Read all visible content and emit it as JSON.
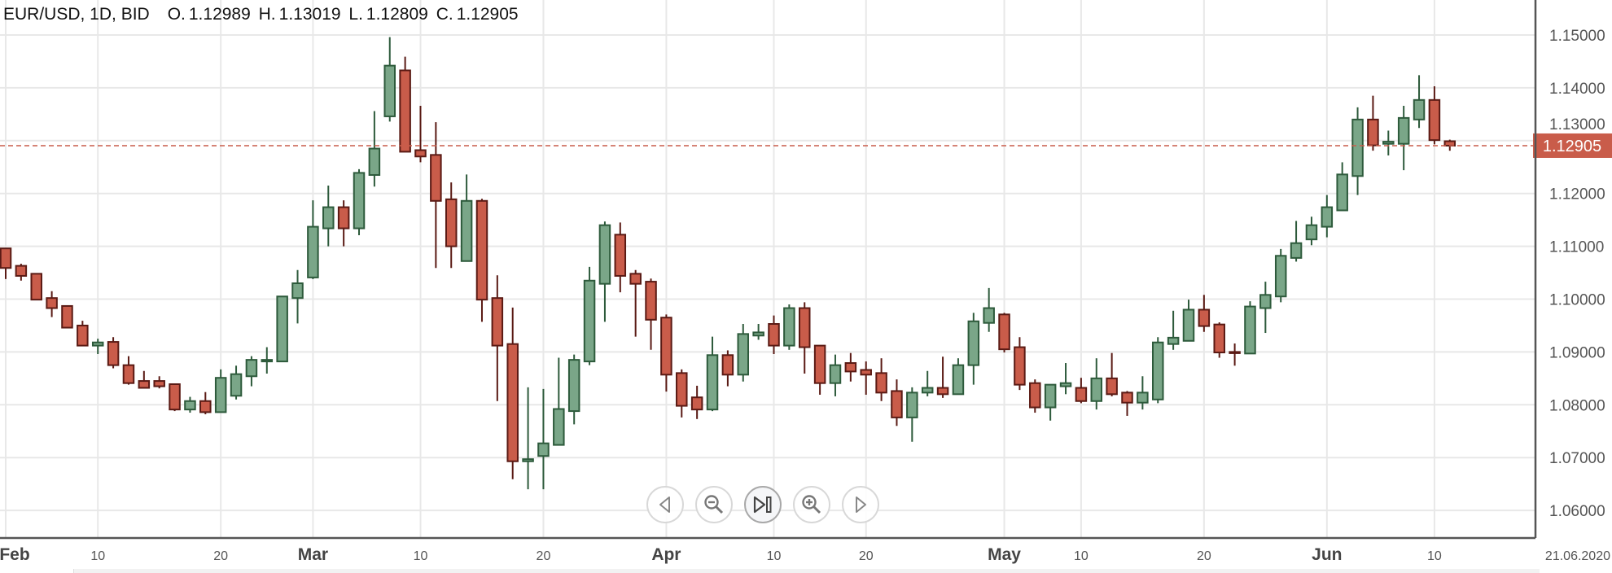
{
  "header": {
    "symbol": "EUR/USD, 1D, BID",
    "open_label": "O.",
    "open": "1.12989",
    "high_label": "H.",
    "high": "1.13019",
    "low_label": "L.",
    "low": "1.12809",
    "close_label": "C.",
    "close": "1.12905"
  },
  "current_price_label": "1.12905",
  "navigation": {
    "buttons": [
      {
        "icon": "arrow-left-icon"
      },
      {
        "icon": "zoom-out-icon"
      },
      {
        "icon": "reset-to-latest-icon"
      },
      {
        "icon": "zoom-in-icon"
      },
      {
        "icon": "arrow-right-icon"
      }
    ]
  },
  "colors": {
    "up_fill": "#7aa688",
    "up_stroke": "#2d5a3b",
    "down_fill": "#c95c4a",
    "down_stroke": "#5a1a14",
    "current_price": "#c95c4a",
    "grid": "#e8e8e8",
    "axis": "#555555"
  },
  "chart_data": {
    "type": "candlestick",
    "title": "",
    "ylim": [
      1.06,
      1.15
    ],
    "y_ticks": [
      "1.06000",
      "1.07000",
      "1.08000",
      "1.09000",
      "1.10000",
      "1.11000",
      "1.12000",
      "1.13000",
      "1.14000",
      "1.15000"
    ],
    "y_tick_values": [
      1.06,
      1.07,
      1.08,
      1.09,
      1.1,
      1.11,
      1.12,
      1.13,
      1.14,
      1.15
    ],
    "grid": true,
    "axis_position": "right",
    "current_price": 1.12905,
    "x_ticks": [
      {
        "label": "Feb",
        "candle": 0,
        "major": true
      },
      {
        "label": "10",
        "candle": 6,
        "major": false
      },
      {
        "label": "20",
        "candle": 14,
        "major": false
      },
      {
        "label": "Mar",
        "candle": 20,
        "major": true
      },
      {
        "label": "10",
        "candle": 27,
        "major": false
      },
      {
        "label": "20",
        "candle": 35,
        "major": false
      },
      {
        "label": "Apr",
        "candle": 43,
        "major": true
      },
      {
        "label": "10",
        "candle": 50,
        "major": false
      },
      {
        "label": "20",
        "candle": 56,
        "major": false
      },
      {
        "label": "May",
        "candle": 65,
        "major": true
      },
      {
        "label": "10",
        "candle": 70,
        "major": false
      },
      {
        "label": "20",
        "candle": 78,
        "major": false
      },
      {
        "label": "Jun",
        "candle": 86,
        "major": true
      },
      {
        "label": "10",
        "candle": 93,
        "major": false
      }
    ],
    "x_end_label": "21.06.2020",
    "ohlc_fields": [
      "open",
      "high",
      "low",
      "close"
    ],
    "ohlc": [
      [
        1.1096,
        1.1097,
        1.1038,
        1.1059
      ],
      [
        1.1063,
        1.1067,
        1.1035,
        1.1044
      ],
      [
        1.1048,
        1.1049,
        1.0998,
        1.0999
      ],
      [
        1.1002,
        1.1015,
        1.0966,
        1.0983
      ],
      [
        1.0987,
        1.0987,
        1.0946,
        1.0946
      ],
      [
        1.095,
        1.0959,
        1.0911,
        1.0912
      ],
      [
        1.0912,
        1.0925,
        1.0896,
        1.0918
      ],
      [
        1.0919,
        1.0928,
        1.0869,
        1.0875
      ],
      [
        1.0875,
        1.0892,
        1.0838,
        1.0841
      ],
      [
        1.0845,
        1.0864,
        1.0832,
        1.0832
      ],
      [
        1.0845,
        1.0854,
        1.0831,
        1.0835
      ],
      [
        1.0839,
        1.084,
        1.0788,
        1.0791
      ],
      [
        1.0791,
        1.0815,
        1.0785,
        1.0807
      ],
      [
        1.0807,
        1.0824,
        1.0782,
        1.0786
      ],
      [
        1.0786,
        1.0867,
        1.0786,
        1.0851
      ],
      [
        1.0817,
        1.0874,
        1.081,
        1.0858
      ],
      [
        1.0854,
        1.0892,
        1.0835,
        1.0885
      ],
      [
        1.0882,
        1.0909,
        1.0859,
        1.0885
      ],
      [
        1.0882,
        1.1005,
        1.0882,
        1.1005
      ],
      [
        1.1002,
        1.1055,
        1.0954,
        1.103
      ],
      [
        1.1041,
        1.1187,
        1.1038,
        1.1137
      ],
      [
        1.1134,
        1.1215,
        1.11,
        1.1174
      ],
      [
        1.1174,
        1.1187,
        1.11,
        1.1134
      ],
      [
        1.1134,
        1.1246,
        1.1121,
        1.1239
      ],
      [
        1.1235,
        1.1356,
        1.1213,
        1.1285
      ],
      [
        1.1346,
        1.1496,
        1.1336,
        1.1442
      ],
      [
        1.1433,
        1.1459,
        1.1279,
        1.1279
      ],
      [
        1.1282,
        1.1366,
        1.1259,
        1.127
      ],
      [
        1.1273,
        1.1335,
        1.1059,
        1.1186
      ],
      [
        1.1189,
        1.1221,
        1.1059,
        1.11
      ],
      [
        1.1072,
        1.1236,
        1.1072,
        1.1186
      ],
      [
        1.1186,
        1.119,
        1.0957,
        1.0999
      ],
      [
        1.1002,
        1.1045,
        1.0807,
        1.0912
      ],
      [
        1.0915,
        1.0984,
        1.0659,
        1.0693
      ],
      [
        1.0693,
        1.0833,
        1.064,
        1.0697
      ],
      [
        1.0703,
        1.083,
        1.064,
        1.0727
      ],
      [
        1.0724,
        1.0889,
        1.0724,
        1.0792
      ],
      [
        1.0788,
        1.0895,
        1.0763,
        1.0885
      ],
      [
        1.0882,
        1.1061,
        1.0875,
        1.1035
      ],
      [
        1.1029,
        1.1147,
        1.0957,
        1.114
      ],
      [
        1.1122,
        1.1145,
        1.1013,
        1.1044
      ],
      [
        1.1048,
        1.1055,
        1.0929,
        1.1029
      ],
      [
        1.1033,
        1.1039,
        1.0904,
        1.0961
      ],
      [
        1.0965,
        1.0971,
        1.0825,
        1.0857
      ],
      [
        1.086,
        1.0867,
        1.0776,
        1.0798
      ],
      [
        1.0814,
        1.0836,
        1.0773,
        1.0791
      ],
      [
        1.0791,
        1.0929,
        1.0788,
        1.0894
      ],
      [
        1.0894,
        1.0903,
        1.0835,
        1.0857
      ],
      [
        1.0857,
        1.0953,
        1.0844,
        1.0934
      ],
      [
        1.0931,
        1.0953,
        1.0923,
        1.0937
      ],
      [
        1.0953,
        1.0969,
        1.0896,
        1.0912
      ],
      [
        1.0912,
        1.099,
        1.0904,
        1.0983
      ],
      [
        1.0983,
        1.0994,
        1.0859,
        1.0909
      ],
      [
        1.0912,
        1.0912,
        1.0819,
        1.0841
      ],
      [
        1.0841,
        1.0895,
        1.0816,
        1.0875
      ],
      [
        1.0879,
        1.0898,
        1.0844,
        1.0863
      ],
      [
        1.0866,
        1.0882,
        1.0819,
        1.0857
      ],
      [
        1.086,
        1.0888,
        1.0807,
        1.0823
      ],
      [
        1.0826,
        1.0848,
        1.076,
        1.0776
      ],
      [
        1.0776,
        1.0833,
        1.073,
        1.0823
      ],
      [
        1.0823,
        1.0864,
        1.0816,
        1.0832
      ],
      [
        1.0832,
        1.0891,
        1.0813,
        1.082
      ],
      [
        1.082,
        1.0888,
        1.082,
        1.0875
      ],
      [
        1.0875,
        1.0974,
        1.0838,
        1.0958
      ],
      [
        1.0955,
        1.1021,
        1.0938,
        1.0983
      ],
      [
        1.0971,
        1.0974,
        1.0899,
        1.0905
      ],
      [
        1.0909,
        1.0928,
        1.0828,
        1.0838
      ],
      [
        1.0841,
        1.0848,
        1.0785,
        1.0795
      ],
      [
        1.0795,
        1.0838,
        1.077,
        1.0838
      ],
      [
        1.0835,
        1.0879,
        1.082,
        1.0841
      ],
      [
        1.0832,
        1.0851,
        1.0803,
        1.0807
      ],
      [
        1.0807,
        1.0888,
        1.0791,
        1.085
      ],
      [
        1.085,
        1.0898,
        1.0816,
        1.082
      ],
      [
        1.0823,
        1.0826,
        1.0779,
        1.0804
      ],
      [
        1.0804,
        1.0854,
        1.0791,
        1.0823
      ],
      [
        1.081,
        1.0928,
        1.0803,
        1.0918
      ],
      [
        1.0915,
        1.0978,
        1.0904,
        1.0927
      ],
      [
        1.0921,
        1.0999,
        1.0921,
        1.098
      ],
      [
        1.098,
        1.1008,
        1.0938,
        1.0949
      ],
      [
        1.0952,
        1.0956,
        1.0889,
        1.0899
      ],
      [
        1.09,
        1.0916,
        1.0874,
        1.0898
      ],
      [
        1.0897,
        1.0996,
        1.0897,
        1.0986
      ],
      [
        1.0983,
        1.1033,
        1.0936,
        1.1008
      ],
      [
        1.1005,
        1.1095,
        1.0994,
        1.1082
      ],
      [
        1.1078,
        1.1148,
        1.1071,
        1.1106
      ],
      [
        1.1113,
        1.1156,
        1.1102,
        1.114
      ],
      [
        1.1137,
        1.1197,
        1.1117,
        1.1174
      ],
      [
        1.1168,
        1.1259,
        1.1168,
        1.1236
      ],
      [
        1.1233,
        1.1363,
        1.1197,
        1.134
      ],
      [
        1.134,
        1.1385,
        1.1281,
        1.1291
      ],
      [
        1.1294,
        1.1319,
        1.1272,
        1.1298
      ],
      [
        1.1294,
        1.1366,
        1.1244,
        1.1343
      ],
      [
        1.134,
        1.1424,
        1.1324,
        1.1377
      ],
      [
        1.1377,
        1.1403,
        1.1293,
        1.1301
      ],
      [
        1.12989,
        1.13019,
        1.12809,
        1.12905
      ]
    ]
  }
}
